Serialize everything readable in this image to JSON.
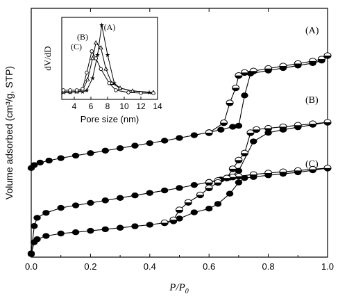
{
  "chart_data": [
    {
      "type": "line",
      "title": "",
      "xlabel": "P/P0",
      "ylabel": "Volume adsorbed (cm³/g, STP)",
      "xlim": [
        0.0,
        1.0
      ],
      "ylim": [
        0,
        1
      ],
      "x_ticks": [
        "0.0",
        "0.2",
        "0.4",
        "0.6",
        "0.8",
        "1.0"
      ],
      "x_tick_values": [
        0.0,
        0.2,
        0.4,
        0.6,
        0.8,
        1.0
      ],
      "y_ticks": [],
      "legend_placement": "right labels",
      "series": [
        {
          "name": "(A)",
          "adsorption": {
            "x": [
              0.0,
              0.01,
              0.03,
              0.06,
              0.1,
              0.15,
              0.2,
              0.25,
              0.3,
              0.35,
              0.4,
              0.45,
              0.5,
              0.55,
              0.6,
              0.64,
              0.68,
              0.7,
              0.72,
              0.74,
              0.8,
              0.85,
              0.9,
              0.95,
              0.98,
              1.0
            ],
            "y": [
              0.358,
              0.37,
              0.38,
              0.388,
              0.398,
              0.408,
              0.418,
              0.428,
              0.438,
              0.448,
              0.458,
              0.468,
              0.479,
              0.49,
              0.502,
              0.512,
              0.524,
              0.528,
              0.65,
              0.738,
              0.75,
              0.76,
              0.77,
              0.78,
              0.79,
              0.81
            ]
          },
          "desorption": {
            "x": [
              1.0,
              0.98,
              0.95,
              0.9,
              0.85,
              0.8,
              0.75,
              0.72,
              0.7,
              0.69,
              0.67,
              0.65,
              0.6
            ],
            "y": [
              0.81,
              0.796,
              0.788,
              0.778,
              0.768,
              0.758,
              0.748,
              0.742,
              0.73,
              0.68,
              0.62,
              0.54,
              0.5
            ]
          }
        },
        {
          "name": "(B)",
          "adsorption": {
            "x": [
              0.0,
              0.01,
              0.02,
              0.05,
              0.1,
              0.15,
              0.2,
              0.25,
              0.3,
              0.35,
              0.4,
              0.45,
              0.5,
              0.55,
              0.6,
              0.64,
              0.67,
              0.7,
              0.75,
              0.8,
              0.85,
              0.9,
              0.95,
              1.0
            ],
            "y": [
              0.015,
              0.125,
              0.158,
              0.178,
              0.198,
              0.208,
              0.218,
              0.228,
              0.238,
              0.248,
              0.258,
              0.268,
              0.278,
              0.29,
              0.302,
              0.312,
              0.32,
              0.347,
              0.465,
              0.5,
              0.512,
              0.522,
              0.532,
              0.542
            ]
          },
          "desorption": {
            "x": [
              1.0,
              0.95,
              0.9,
              0.85,
              0.8,
              0.76,
              0.74,
              0.72,
              0.7,
              0.68,
              0.66,
              0.63,
              0.6
            ],
            "y": [
              0.542,
              0.536,
              0.53,
              0.524,
              0.518,
              0.513,
              0.5,
              0.418,
              0.39,
              0.355,
              0.318,
              0.308,
              0.3
            ]
          }
        },
        {
          "name": "(C)",
          "adsorption": {
            "x": [
              0.0,
              0.01,
              0.02,
              0.05,
              0.1,
              0.15,
              0.2,
              0.25,
              0.3,
              0.35,
              0.4,
              0.45,
              0.48,
              0.5,
              0.55,
              0.6,
              0.63,
              0.67,
              0.7,
              0.72,
              0.75,
              0.8,
              0.85,
              0.9,
              0.95,
              1.0
            ],
            "y": [
              0.012,
              0.06,
              0.072,
              0.085,
              0.095,
              0.1,
              0.106,
              0.112,
              0.118,
              0.124,
              0.13,
              0.138,
              0.144,
              0.155,
              0.18,
              0.195,
              0.214,
              0.255,
              0.3,
              0.318,
              0.322,
              0.329,
              0.335,
              0.341,
              0.349,
              0.358
            ]
          },
          "desorption": {
            "x": [
              1.0,
              0.95,
              0.9,
              0.85,
              0.8,
              0.75,
              0.7,
              0.68,
              0.66,
              0.63,
              0.6,
              0.57,
              0.53,
              0.5,
              0.48,
              0.45
            ],
            "y": [
              0.358,
              0.353,
              0.348,
              0.343,
              0.338,
              0.332,
              0.325,
              0.322,
              0.318,
              0.3,
              0.278,
              0.25,
              0.22,
              0.19,
              0.15,
              0.138
            ]
          }
        }
      ]
    },
    {
      "type": "line",
      "title": "",
      "xlabel": "Pore size (nm)",
      "ylabel": "dV/dD",
      "xlim": [
        2.5,
        14
      ],
      "ylim": [
        0,
        1
      ],
      "x_ticks": [
        "4",
        "6",
        "8",
        "10",
        "12",
        "14"
      ],
      "x_tick_values": [
        4,
        6,
        8,
        10,
        12,
        14
      ],
      "legend_placement": "labels near peaks",
      "series": [
        {
          "name": "(A)",
          "marker": "star",
          "x": [
            2.7,
            3.5,
            4.3,
            5.0,
            5.5,
            6.2,
            6.8,
            7.3,
            8.0,
            8.8,
            9.5,
            11.0,
            13.0
          ],
          "y": [
            0.02,
            0.02,
            0.03,
            0.03,
            0.05,
            0.22,
            0.55,
            0.97,
            0.55,
            0.15,
            0.08,
            0.04,
            0.02
          ]
        },
        {
          "name": "(B)",
          "marker": "triangle",
          "x": [
            2.7,
            3.5,
            4.3,
            5.0,
            5.6,
            6.2,
            6.6,
            7.2,
            7.8,
            8.5,
            9.5,
            11.0,
            13.5
          ],
          "y": [
            0.03,
            0.03,
            0.03,
            0.05,
            0.2,
            0.5,
            0.72,
            0.65,
            0.35,
            0.15,
            0.08,
            0.04,
            0.02
          ]
        },
        {
          "name": "(C)",
          "marker": "circle",
          "x": [
            2.7,
            3.5,
            4.3,
            5.0,
            5.5,
            6.1,
            6.6,
            7.2,
            8.2,
            9.0,
            10.5,
            12.0,
            13.5
          ],
          "y": [
            0.05,
            0.05,
            0.05,
            0.07,
            0.3,
            0.6,
            0.5,
            0.35,
            0.15,
            0.05,
            0.02,
            0.01,
            0.01
          ]
        }
      ]
    }
  ]
}
